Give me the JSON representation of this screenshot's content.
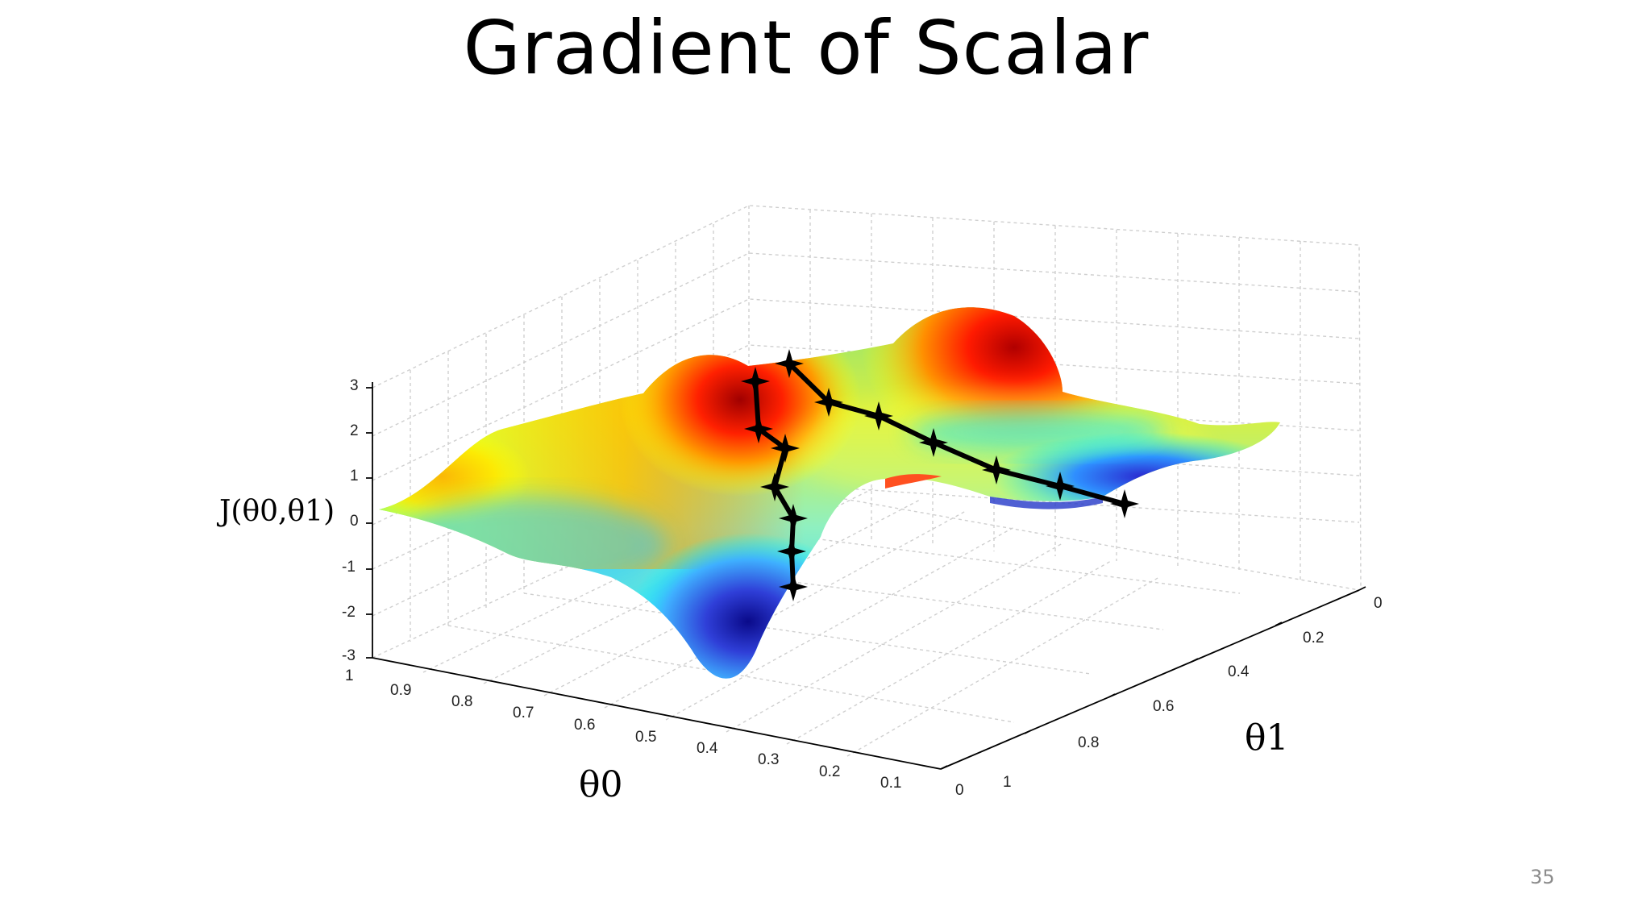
{
  "slide": {
    "title": "Gradient of Scalar",
    "page_number": "35"
  },
  "figure": {
    "z_axis_label": "J(θ0,θ1)",
    "x_axis_label": "θ0",
    "y_axis_label": "θ1",
    "z_ticks": [
      "3",
      "2",
      "1",
      "0",
      "-1",
      "-2",
      "-3"
    ],
    "theta0_ticks": [
      "1",
      "0.9",
      "0.8",
      "0.7",
      "0.6",
      "0.5",
      "0.4",
      "0.3",
      "0.2",
      "0.1",
      "0"
    ],
    "theta1_ticks": [
      "0",
      "0.2",
      "0.4",
      "0.6",
      "0.8",
      "1"
    ],
    "colormap": [
      "#00007f",
      "#0000ff",
      "#00ffff",
      "#7fff7f",
      "#ffff00",
      "#ff7f00",
      "#ff0000",
      "#7f0000"
    ],
    "path_color": "#000000"
  }
}
